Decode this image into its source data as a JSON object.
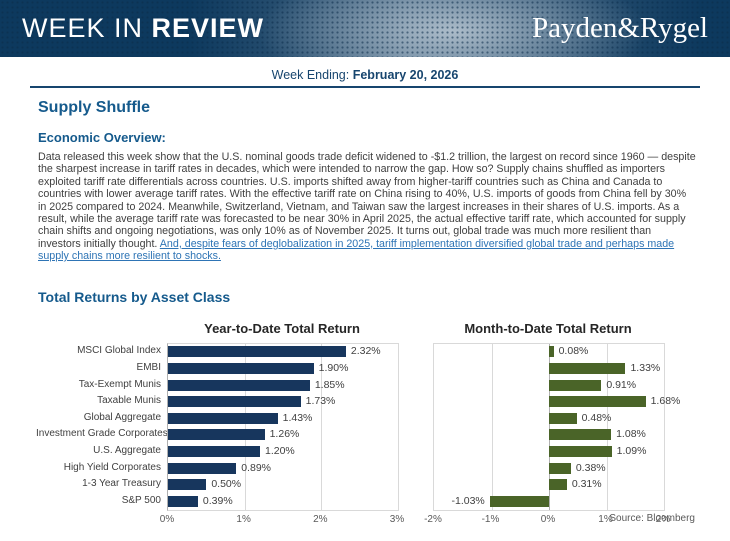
{
  "header": {
    "title_light": "WEEK IN ",
    "title_bold": "REVIEW",
    "brand": "Payden&Rygel"
  },
  "week_ending": {
    "label": "Week Ending: ",
    "date": "February 20, 2026"
  },
  "article": {
    "title": "Supply Shuffle",
    "overview_heading": "Economic Overview:",
    "body": "Data released this week show that the U.S. nominal goods trade deficit widened to -$1.2 trillion, the largest on record since 1960 — despite the sharpest increase in tariff rates in decades, which were intended to narrow the gap. How so? Supply chains shuffled as importers exploited tariff rate differentials across countries. U.S. imports shifted away from higher-tariff countries such as China and Canada to countries with lower average tariff rates. With the effective tariff rate on China rising to 40%, U.S. imports of goods from China fell by 30% in 2025 compared to 2024. Meanwhile, Switzerland, Vietnam, and Taiwan saw the largest increases in their shares of U.S. imports. As a result, while the average tariff rate was forecasted to be near 30% in April 2025, the actual effective tariff rate, which accounted for supply chain shifts and ongoing negotiations, was only 10% as of November 2025. It turns out, global trade was much more resilient than investors initially thought. ",
    "link_text": "And, despite fears of deglobalization in 2025, tariff implementation diversified global trade and perhaps made supply chains more resilient to shocks."
  },
  "section_title": "Total Returns by Asset Class",
  "source": "Source: Bloomberg",
  "colors": {
    "navy_bar": "#17365d",
    "green_bar": "#4a6428",
    "banner_navy": "#0d395e",
    "heading_blue": "#155a8c"
  },
  "chart_data": [
    {
      "type": "bar",
      "orientation": "horizontal",
      "title": "Year-to-Date Total Return",
      "categories": [
        "MSCI Global Index",
        "EMBI",
        "Tax-Exempt Munis",
        "Taxable Munis",
        "Global Aggregate",
        "Investment Grade Corporates",
        "U.S. Aggregate",
        "High Yield Corporates",
        "1-3 Year Treasury",
        "S&P 500"
      ],
      "values": [
        2.32,
        1.9,
        1.85,
        1.73,
        1.43,
        1.26,
        1.2,
        0.89,
        0.5,
        0.39
      ],
      "labels": [
        "2.32%",
        "1.90%",
        "1.85%",
        "1.73%",
        "1.43%",
        "1.26%",
        "1.20%",
        "0.89%",
        "0.50%",
        "0.39%"
      ],
      "xlim": [
        0,
        3
      ],
      "ticks": [
        0,
        1,
        2,
        3
      ],
      "tick_labels": [
        "0%",
        "1%",
        "2%",
        "3%"
      ],
      "bar_color": "#17365d",
      "grid": true,
      "show_category_labels": true
    },
    {
      "type": "bar",
      "orientation": "horizontal",
      "title": "Month-to-Date Total Return",
      "categories": [
        "MSCI Global Index",
        "EMBI",
        "Tax-Exempt Munis",
        "Taxable Munis",
        "Global Aggregate",
        "Investment Grade Corporates",
        "U.S. Aggregate",
        "High Yield Corporates",
        "1-3 Year Treasury",
        "S&P 500"
      ],
      "values": [
        0.08,
        1.33,
        0.91,
        1.68,
        0.48,
        1.08,
        1.09,
        0.38,
        0.31,
        -1.03
      ],
      "labels": [
        "0.08%",
        "1.33%",
        "0.91%",
        "1.68%",
        "0.48%",
        "1.08%",
        "1.09%",
        "0.38%",
        "0.31%",
        "-1.03%"
      ],
      "xlim": [
        -2,
        2
      ],
      "ticks": [
        -2,
        -1,
        0,
        1,
        2
      ],
      "tick_labels": [
        "-2%",
        "-1%",
        "0%",
        "1%",
        "2%"
      ],
      "bar_color": "#4a6428",
      "grid": true,
      "show_category_labels": false
    }
  ]
}
